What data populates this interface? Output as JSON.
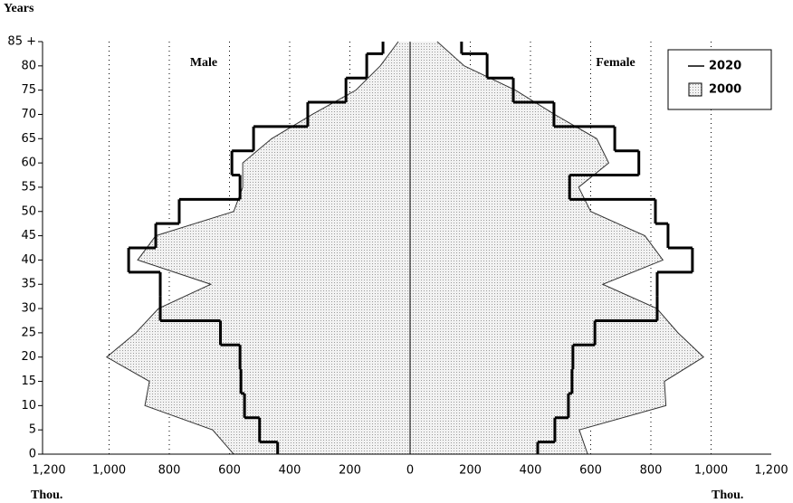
{
  "chart_data": {
    "type": "population-pyramid",
    "y_axis_label": "Years",
    "x_axis_label_left": "Thou.",
    "x_axis_label_right": "Thou.",
    "left_label": "Male",
    "right_label": "Female",
    "categories": [
      "0",
      "5",
      "10",
      "15",
      "20",
      "25",
      "30",
      "35",
      "40",
      "45",
      "50",
      "55",
      "60",
      "65",
      "70",
      "75",
      "80",
      "85 +"
    ],
    "xlim": [
      0,
      1200
    ],
    "xticks": [
      0,
      200,
      400,
      600,
      800,
      {
        "value": 1000,
        "label": "1,000"
      },
      {
        "value": 1200,
        "label": "1,200"
      }
    ],
    "grid": true,
    "legend": "top-right",
    "series": [
      {
        "name": "2020",
        "style": "step",
        "color": "#000000",
        "male": [
          440,
          500,
          550,
          562,
          565,
          630,
          830,
          830,
          935,
          845,
          767,
          565,
          592,
          520,
          340,
          213,
          144,
          90
        ],
        "female": [
          424,
          481,
          526,
          538,
          541,
          614,
          821,
          821,
          938,
          857,
          815,
          530,
          760,
          680,
          478,
          343,
          256,
          171
        ]
      },
      {
        "name": "2000",
        "style": "area",
        "color": "#d8d8d8",
        "male": [
          586,
          656,
          881,
          866,
          1008,
          911,
          836,
          662,
          905,
          845,
          586,
          556,
          556,
          460,
          325,
          180,
          99,
          39
        ],
        "female": [
          590,
          562,
          850,
          845,
          975,
          890,
          820,
          640,
          840,
          780,
          600,
          560,
          660,
          620,
          480,
          350,
          180,
          90
        ]
      }
    ]
  }
}
